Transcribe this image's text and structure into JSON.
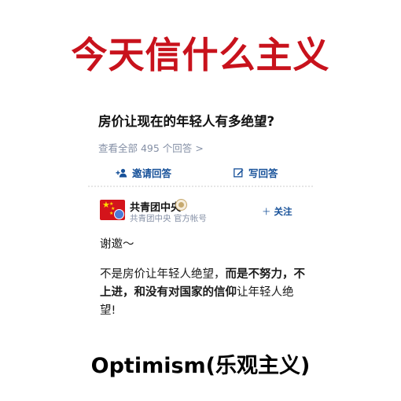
{
  "meme": {
    "title": "今天信什么主义",
    "caption": "Optimism(乐观主义)"
  },
  "question": {
    "title": "房价让现在的年轻人有多绝望?",
    "view_all": "查看全部 495 个回答",
    "view_all_chevron": ">",
    "invite_label": "邀请回答",
    "write_label": "写回答"
  },
  "answer": {
    "author_name": "共青团中央",
    "author_subtitle": "共青团中央 官方帐号",
    "follow_label": "关注",
    "greeting": "谢邀～",
    "body_1": "不是房价让年轻人绝望，",
    "body_2": "而是不努力，不上进，和没有对国家的信仰",
    "body_3": "让年轻人绝望!"
  },
  "colors": {
    "title_red": "#c8121c",
    "link_blue": "#175199",
    "muted_gray": "#8590a6"
  }
}
